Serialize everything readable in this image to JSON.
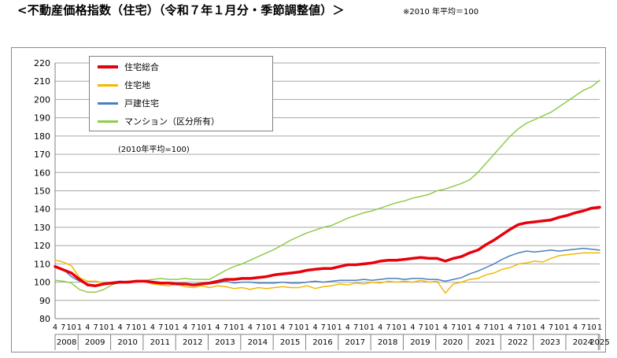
{
  "header": {
    "title": "<不動産価格指数（住宅）（令和７年１月分・季節調整値）＞",
    "note": "※2010 年平均＝100"
  },
  "chart_data": {
    "type": "line",
    "title": "<不動産価格指数（住宅）（令和７年１月分・季節調整値）＞",
    "subtitle": "(2010年平均=100)",
    "ylim": [
      80,
      220
    ],
    "yticks": [
      80,
      90,
      100,
      110,
      120,
      130,
      140,
      150,
      160,
      170,
      180,
      190,
      200,
      210,
      220
    ],
    "grid": true,
    "legend_position": "top-left",
    "x_start": "2008-04",
    "x_end": "2025-01",
    "month_tick_labels": [
      "4",
      "7",
      "10",
      "1"
    ],
    "years": [
      "2008",
      "2009",
      "2010",
      "2011",
      "2012",
      "2013",
      "2014",
      "2015",
      "2016",
      "2017",
      "2018",
      "2019",
      "2020",
      "2021",
      "2022",
      "2023",
      "2024",
      "2025"
    ],
    "series": [
      {
        "name": "住宅総合",
        "color": "#e8000b",
        "width": 3.5,
        "points": [
          [
            "2008-04",
            108.5
          ],
          [
            "2008-10",
            105
          ],
          [
            "2009-01",
            101.5
          ],
          [
            "2009-04",
            98.5
          ],
          [
            "2009-07",
            98
          ],
          [
            "2009-10",
            99
          ],
          [
            "2010-01",
            99.5
          ],
          [
            "2010-04",
            100
          ],
          [
            "2010-07",
            100
          ],
          [
            "2010-10",
            100.5
          ],
          [
            "2011-01",
            100.5
          ],
          [
            "2011-04",
            100
          ],
          [
            "2011-07",
            99.5
          ],
          [
            "2011-10",
            99.5
          ],
          [
            "2012-01",
            99
          ],
          [
            "2012-04",
            99
          ],
          [
            "2012-07",
            98.5
          ],
          [
            "2012-10",
            99
          ],
          [
            "2013-01",
            99.5
          ],
          [
            "2013-04",
            100.5
          ],
          [
            "2013-07",
            101.5
          ],
          [
            "2013-10",
            101.5
          ],
          [
            "2014-01",
            102
          ],
          [
            "2014-04",
            102
          ],
          [
            "2014-07",
            102.5
          ],
          [
            "2014-10",
            103
          ],
          [
            "2015-01",
            104
          ],
          [
            "2015-04",
            104.5
          ],
          [
            "2015-07",
            105
          ],
          [
            "2015-10",
            105.5
          ],
          [
            "2016-01",
            106.5
          ],
          [
            "2016-04",
            107
          ],
          [
            "2016-07",
            107.5
          ],
          [
            "2016-10",
            107.5
          ],
          [
            "2017-01",
            108.5
          ],
          [
            "2017-04",
            109.5
          ],
          [
            "2017-07",
            109.5
          ],
          [
            "2017-10",
            110
          ],
          [
            "2018-01",
            110.5
          ],
          [
            "2018-04",
            111.5
          ],
          [
            "2018-07",
            112
          ],
          [
            "2018-10",
            112
          ],
          [
            "2019-01",
            112.5
          ],
          [
            "2019-04",
            113
          ],
          [
            "2019-07",
            113.5
          ],
          [
            "2019-10",
            113
          ],
          [
            "2020-01",
            113
          ],
          [
            "2020-04",
            111.5
          ],
          [
            "2020-07",
            113
          ],
          [
            "2020-10",
            114
          ],
          [
            "2021-01",
            116
          ],
          [
            "2021-04",
            117.5
          ],
          [
            "2021-07",
            120.5
          ],
          [
            "2021-10",
            123
          ],
          [
            "2022-01",
            126
          ],
          [
            "2022-04",
            129
          ],
          [
            "2022-07",
            131.5
          ],
          [
            "2022-10",
            132.5
          ],
          [
            "2023-01",
            133
          ],
          [
            "2023-04",
            133.5
          ],
          [
            "2023-07",
            134
          ],
          [
            "2023-10",
            135.5
          ],
          [
            "2024-01",
            136.5
          ],
          [
            "2024-04",
            138
          ],
          [
            "2024-07",
            139
          ],
          [
            "2024-10",
            140.5
          ],
          [
            "2025-01",
            141
          ]
        ]
      },
      {
        "name": "住宅地",
        "color": "#f2b800",
        "width": 1.5,
        "points": [
          [
            "2008-04",
            112
          ],
          [
            "2008-07",
            111
          ],
          [
            "2008-10",
            109
          ],
          [
            "2009-01",
            102.5
          ],
          [
            "2009-04",
            100.5
          ],
          [
            "2009-07",
            100.5
          ],
          [
            "2009-10",
            99.5
          ],
          [
            "2010-01",
            100
          ],
          [
            "2010-04",
            99.5
          ],
          [
            "2010-07",
            100.5
          ],
          [
            "2010-10",
            100
          ],
          [
            "2011-01",
            100.5
          ],
          [
            "2011-04",
            99
          ],
          [
            "2011-07",
            98.5
          ],
          [
            "2011-10",
            98
          ],
          [
            "2012-01",
            99
          ],
          [
            "2012-04",
            97.5
          ],
          [
            "2012-07",
            97
          ],
          [
            "2012-10",
            98
          ],
          [
            "2013-01",
            97
          ],
          [
            "2013-04",
            98
          ],
          [
            "2013-07",
            97.5
          ],
          [
            "2013-10",
            96.5
          ],
          [
            "2014-01",
            97
          ],
          [
            "2014-04",
            96
          ],
          [
            "2014-07",
            97
          ],
          [
            "2014-10",
            96.5
          ],
          [
            "2015-01",
            97
          ],
          [
            "2015-04",
            97.5
          ],
          [
            "2015-07",
            97
          ],
          [
            "2015-10",
            97
          ],
          [
            "2016-01",
            98
          ],
          [
            "2016-04",
            96.5
          ],
          [
            "2016-07",
            97.5
          ],
          [
            "2016-10",
            98
          ],
          [
            "2017-01",
            99
          ],
          [
            "2017-04",
            98.5
          ],
          [
            "2017-07",
            99.5
          ],
          [
            "2017-10",
            99
          ],
          [
            "2018-01",
            100
          ],
          [
            "2018-04",
            99.5
          ],
          [
            "2018-07",
            100.5
          ],
          [
            "2018-10",
            100
          ],
          [
            "2019-01",
            100.5
          ],
          [
            "2019-04",
            100
          ],
          [
            "2019-07",
            101
          ],
          [
            "2019-10",
            100
          ],
          [
            "2020-01",
            100.5
          ],
          [
            "2020-04",
            94
          ],
          [
            "2020-07",
            99
          ],
          [
            "2020-10",
            100
          ],
          [
            "2021-01",
            101.5
          ],
          [
            "2021-04",
            102
          ],
          [
            "2021-07",
            104
          ],
          [
            "2021-10",
            105
          ],
          [
            "2022-01",
            107
          ],
          [
            "2022-04",
            108
          ],
          [
            "2022-07",
            110
          ],
          [
            "2022-10",
            110.5
          ],
          [
            "2023-01",
            111.5
          ],
          [
            "2023-04",
            111
          ],
          [
            "2023-07",
            113
          ],
          [
            "2023-10",
            114.5
          ],
          [
            "2024-01",
            115
          ],
          [
            "2024-04",
            115.5
          ],
          [
            "2024-07",
            116
          ],
          [
            "2024-10",
            116
          ],
          [
            "2025-01",
            116
          ]
        ]
      },
      {
        "name": "戸建住宅",
        "color": "#4a7fc0",
        "width": 1.5,
        "points": [
          [
            "2008-04",
            109
          ],
          [
            "2008-07",
            107
          ],
          [
            "2008-10",
            103
          ],
          [
            "2009-01",
            100.5
          ],
          [
            "2009-04",
            99
          ],
          [
            "2009-07",
            98
          ],
          [
            "2009-10",
            99.5
          ],
          [
            "2010-01",
            100
          ],
          [
            "2010-04",
            100.5
          ],
          [
            "2010-07",
            100
          ],
          [
            "2010-10",
            100.5
          ],
          [
            "2011-01",
            100.5
          ],
          [
            "2011-04",
            99.5
          ],
          [
            "2011-07",
            99.5
          ],
          [
            "2011-10",
            99
          ],
          [
            "2012-01",
            99.5
          ],
          [
            "2012-04",
            99
          ],
          [
            "2012-07",
            98.5
          ],
          [
            "2012-10",
            99
          ],
          [
            "2013-01",
            99
          ],
          [
            "2013-04",
            99.5
          ],
          [
            "2013-07",
            100.5
          ],
          [
            "2013-10",
            99.5
          ],
          [
            "2014-01",
            100
          ],
          [
            "2014-04",
            100
          ],
          [
            "2014-07",
            99.5
          ],
          [
            "2014-10",
            99.5
          ],
          [
            "2015-01",
            99.5
          ],
          [
            "2015-04",
            100
          ],
          [
            "2015-07",
            99.5
          ],
          [
            "2015-10",
            99.5
          ],
          [
            "2016-01",
            100
          ],
          [
            "2016-04",
            100.5
          ],
          [
            "2016-07",
            100
          ],
          [
            "2016-10",
            100.5
          ],
          [
            "2017-01",
            101
          ],
          [
            "2017-04",
            101
          ],
          [
            "2017-07",
            101
          ],
          [
            "2017-10",
            101.5
          ],
          [
            "2018-01",
            101
          ],
          [
            "2018-04",
            101.5
          ],
          [
            "2018-07",
            102
          ],
          [
            "2018-10",
            102
          ],
          [
            "2019-01",
            101.5
          ],
          [
            "2019-04",
            102
          ],
          [
            "2019-07",
            102
          ],
          [
            "2019-10",
            101.5
          ],
          [
            "2020-01",
            101.5
          ],
          [
            "2020-04",
            100.5
          ],
          [
            "2020-07",
            101.5
          ],
          [
            "2020-10",
            102.5
          ],
          [
            "2021-01",
            104.5
          ],
          [
            "2021-04",
            106
          ],
          [
            "2021-07",
            108
          ],
          [
            "2021-10",
            110
          ],
          [
            "2022-01",
            112.5
          ],
          [
            "2022-04",
            114.5
          ],
          [
            "2022-07",
            116
          ],
          [
            "2022-10",
            117
          ],
          [
            "2023-01",
            116.5
          ],
          [
            "2023-04",
            117
          ],
          [
            "2023-07",
            117.5
          ],
          [
            "2023-10",
            117
          ],
          [
            "2024-01",
            117.5
          ],
          [
            "2024-04",
            118
          ],
          [
            "2024-07",
            118.5
          ],
          [
            "2024-10",
            118
          ],
          [
            "2025-01",
            117.5
          ]
        ]
      },
      {
        "name": "マンション（区分所有）",
        "color": "#8fcc4a",
        "width": 1.5,
        "points": [
          [
            "2008-04",
            101
          ],
          [
            "2008-07",
            100.5
          ],
          [
            "2008-10",
            99.5
          ],
          [
            "2009-01",
            96
          ],
          [
            "2009-04",
            94.5
          ],
          [
            "2009-07",
            94.5
          ],
          [
            "2009-10",
            96
          ],
          [
            "2010-01",
            98.5
          ],
          [
            "2010-04",
            100
          ],
          [
            "2010-07",
            100.5
          ],
          [
            "2010-10",
            100.5
          ],
          [
            "2011-01",
            101
          ],
          [
            "2011-04",
            101.5
          ],
          [
            "2011-07",
            102
          ],
          [
            "2011-10",
            101.5
          ],
          [
            "2012-01",
            101.5
          ],
          [
            "2012-04",
            102
          ],
          [
            "2012-07",
            101.5
          ],
          [
            "2012-10",
            101.5
          ],
          [
            "2013-01",
            101.5
          ],
          [
            "2013-04",
            104
          ],
          [
            "2013-07",
            106.5
          ],
          [
            "2013-10",
            108.5
          ],
          [
            "2014-01",
            110
          ],
          [
            "2014-04",
            112
          ],
          [
            "2014-07",
            114
          ],
          [
            "2014-10",
            116
          ],
          [
            "2015-01",
            118
          ],
          [
            "2015-04",
            120.5
          ],
          [
            "2015-07",
            123
          ],
          [
            "2015-10",
            125
          ],
          [
            "2016-01",
            127
          ],
          [
            "2016-04",
            128.5
          ],
          [
            "2016-07",
            130
          ],
          [
            "2016-10",
            131
          ],
          [
            "2017-01",
            133
          ],
          [
            "2017-04",
            135
          ],
          [
            "2017-07",
            136.5
          ],
          [
            "2017-10",
            138
          ],
          [
            "2018-01",
            139
          ],
          [
            "2018-04",
            140.5
          ],
          [
            "2018-07",
            142
          ],
          [
            "2018-10",
            143.5
          ],
          [
            "2019-01",
            144.5
          ],
          [
            "2019-04",
            146
          ],
          [
            "2019-07",
            147
          ],
          [
            "2019-10",
            148
          ],
          [
            "2020-01",
            150
          ],
          [
            "2020-04",
            151
          ],
          [
            "2020-07",
            152.5
          ],
          [
            "2020-10",
            154
          ],
          [
            "2021-01",
            156
          ],
          [
            "2021-04",
            160
          ],
          [
            "2021-07",
            165
          ],
          [
            "2021-10",
            170
          ],
          [
            "2022-01",
            175
          ],
          [
            "2022-04",
            180
          ],
          [
            "2022-07",
            184
          ],
          [
            "2022-10",
            187
          ],
          [
            "2023-01",
            189
          ],
          [
            "2023-04",
            191
          ],
          [
            "2023-07",
            193
          ],
          [
            "2023-10",
            196
          ],
          [
            "2024-01",
            199
          ],
          [
            "2024-04",
            202
          ],
          [
            "2024-07",
            205
          ],
          [
            "2024-10",
            207
          ],
          [
            "2025-01",
            210.5
          ]
        ]
      }
    ]
  }
}
